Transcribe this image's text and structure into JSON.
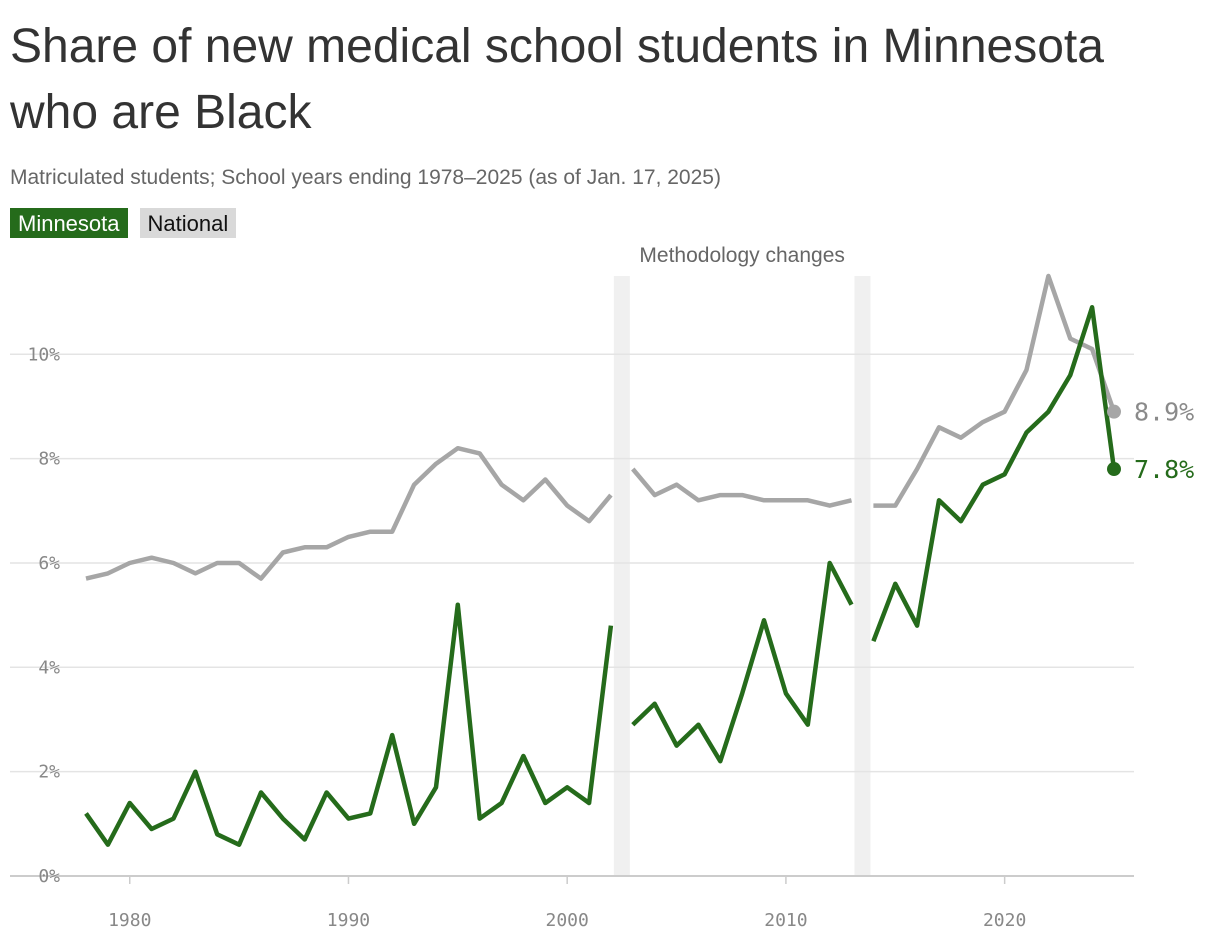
{
  "chart_data": {
    "type": "line",
    "title": "Share of new medical school students in Minnesota who are Black",
    "subtitle": "Matriculated students; School years ending 1978–2025 (as of Jan. 17, 2025)",
    "annotation": "Methodology changes",
    "x_ticks": [
      "1980",
      "1990",
      "2000",
      "2010",
      "2020"
    ],
    "y_ticks": [
      "0%",
      "2%",
      "4%",
      "6%",
      "8%",
      "10%"
    ],
    "xlim": [
      1978,
      2025
    ],
    "ylim": [
      0,
      11.5
    ],
    "grid": true,
    "methodology_change_years": [
      2002.5,
      2013.5
    ],
    "series": [
      {
        "name": "Minnesota",
        "color": "#256b1b",
        "end_label": "7.8%",
        "segments": [
          {
            "x": [
              1978,
              1979,
              1980,
              1981,
              1982,
              1983,
              1984,
              1985,
              1986,
              1987,
              1988,
              1989,
              1990,
              1991,
              1992,
              1993,
              1994,
              1995,
              1996,
              1997,
              1998,
              1999,
              2000,
              2001,
              2002
            ],
            "y": [
              1.2,
              0.6,
              1.4,
              0.9,
              1.1,
              2.0,
              0.8,
              0.6,
              1.6,
              1.1,
              0.7,
              1.6,
              1.1,
              1.2,
              2.7,
              1.0,
              1.7,
              5.2,
              1.1,
              1.4,
              2.3,
              1.4,
              1.7,
              1.4,
              4.8
            ]
          },
          {
            "x": [
              2003,
              2004,
              2005,
              2006,
              2007,
              2008,
              2009,
              2010,
              2011,
              2012,
              2013
            ],
            "y": [
              2.9,
              3.3,
              2.5,
              2.9,
              2.2,
              3.5,
              4.9,
              3.5,
              2.9,
              6.0,
              5.2
            ]
          },
          {
            "x": [
              2014,
              2015,
              2016,
              2017,
              2018,
              2019,
              2020,
              2021,
              2022,
              2023,
              2024,
              2025
            ],
            "y": [
              4.5,
              5.6,
              4.8,
              7.2,
              6.8,
              7.5,
              7.7,
              8.5,
              8.9,
              9.6,
              10.9,
              7.8
            ]
          }
        ]
      },
      {
        "name": "National",
        "color": "#a6a6a6",
        "end_label": "8.9%",
        "segments": [
          {
            "x": [
              1978,
              1979,
              1980,
              1981,
              1982,
              1983,
              1984,
              1985,
              1986,
              1987,
              1988,
              1989,
              1990,
              1991,
              1992,
              1993,
              1994,
              1995,
              1996,
              1997,
              1998,
              1999,
              2000,
              2001,
              2002
            ],
            "y": [
              5.7,
              5.8,
              6.0,
              6.1,
              6.0,
              5.8,
              6.0,
              6.0,
              5.7,
              6.2,
              6.3,
              6.3,
              6.5,
              6.6,
              6.6,
              7.5,
              7.9,
              8.2,
              8.1,
              7.5,
              7.2,
              7.6,
              7.1,
              6.8,
              7.3
            ]
          },
          {
            "x": [
              2003,
              2004,
              2005,
              2006,
              2007,
              2008,
              2009,
              2010,
              2011,
              2012,
              2013
            ],
            "y": [
              7.8,
              7.3,
              7.5,
              7.2,
              7.3,
              7.3,
              7.2,
              7.2,
              7.2,
              7.1,
              7.2
            ]
          },
          {
            "x": [
              2014,
              2015,
              2016,
              2017,
              2018,
              2019,
              2020,
              2021,
              2022,
              2023,
              2024,
              2025
            ],
            "y": [
              7.1,
              7.1,
              7.8,
              8.6,
              8.4,
              8.7,
              8.9,
              9.7,
              11.5,
              10.3,
              10.1,
              8.9
            ]
          }
        ]
      }
    ],
    "legend": {
      "placement": "top-left",
      "items": [
        {
          "label": "Minnesota",
          "bg": "#256b1b",
          "fg": "#ffffff"
        },
        {
          "label": "National",
          "bg": "#d9d9d9",
          "fg": "#111111"
        }
      ]
    }
  }
}
